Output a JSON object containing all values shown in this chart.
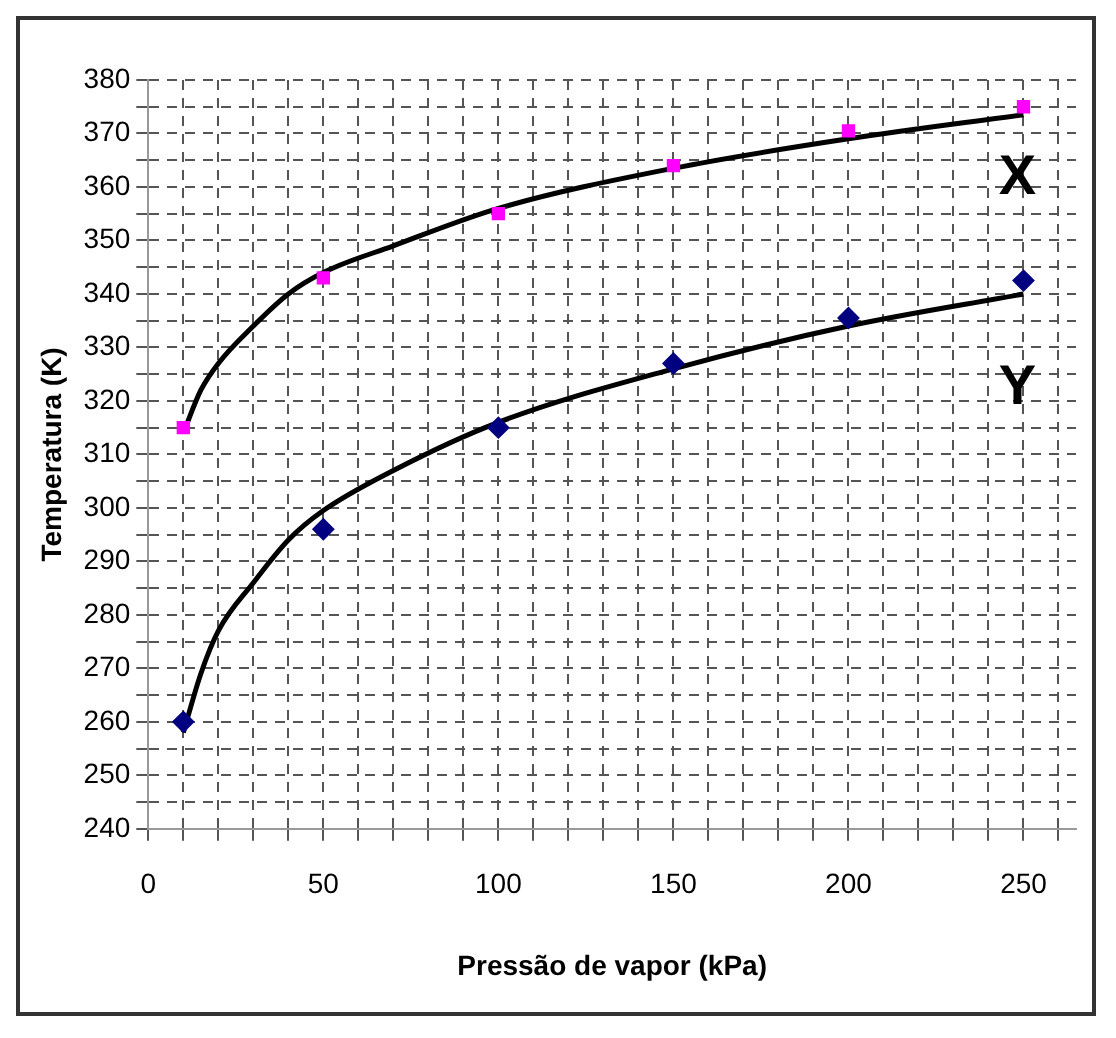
{
  "chart_data": {
    "type": "scatter",
    "xlabel": "Pressão de vapor (kPa)",
    "ylabel": "Temperatura (K)",
    "xlim": [
      0,
      265
    ],
    "ylim": [
      240,
      380
    ],
    "xticks": [
      0,
      {
        "value": 10,
        "label": null
      },
      {
        "value": 20,
        "label": null
      },
      {
        "value": 30,
        "label": null
      },
      {
        "value": 40,
        "label": null
      },
      50,
      {
        "value": 60,
        "label": null
      },
      {
        "value": 70,
        "label": null
      },
      {
        "value": 80,
        "label": null
      },
      {
        "value": 90,
        "label": null
      },
      100,
      {
        "value": 110,
        "label": null
      },
      {
        "value": 120,
        "label": null
      },
      {
        "value": 130,
        "label": null
      },
      {
        "value": 140,
        "label": null
      },
      150,
      {
        "value": 160,
        "label": null
      },
      {
        "value": 170,
        "label": null
      },
      {
        "value": 180,
        "label": null
      },
      {
        "value": 190,
        "label": null
      },
      200,
      {
        "value": 210,
        "label": null
      },
      {
        "value": 220,
        "label": null
      },
      {
        "value": 230,
        "label": null
      },
      {
        "value": 240,
        "label": null
      },
      250,
      {
        "value": 260,
        "label": null
      }
    ],
    "yticks": [
      240,
      {
        "value": 245,
        "label": null
      },
      250,
      {
        "value": 255,
        "label": null
      },
      260,
      {
        "value": 265,
        "label": null
      },
      270,
      {
        "value": 275,
        "label": null
      },
      280,
      {
        "value": 285,
        "label": null
      },
      290,
      {
        "value": 295,
        "label": null
      },
      300,
      {
        "value": 305,
        "label": null
      },
      310,
      {
        "value": 315,
        "label": null
      },
      320,
      {
        "value": 325,
        "label": null
      },
      330,
      {
        "value": 335,
        "label": null
      },
      340,
      {
        "value": 345,
        "label": null
      },
      350,
      {
        "value": 355,
        "label": null
      },
      360,
      {
        "value": 365,
        "label": null
      },
      370,
      {
        "value": 375,
        "label": null
      },
      380
    ],
    "grid": true,
    "legend": false,
    "line_style": "dashed",
    "series": [
      {
        "type": "line",
        "color": "#000000",
        "marker": "none",
        "line_style": "solid",
        "x": [
          10,
          15,
          20,
          30,
          40,
          50,
          70,
          100,
          150,
          200,
          250
        ],
        "values": [
          314,
          322,
          327,
          334,
          340,
          344,
          349,
          356,
          363.5,
          369,
          373.5
        ]
      },
      {
        "type": "line",
        "color": "#000000",
        "marker": "none",
        "line_style": "solid",
        "x": [
          10,
          15,
          20,
          30,
          40,
          50,
          70,
          100,
          150,
          200,
          250
        ],
        "values": [
          258,
          269,
          277,
          286,
          294,
          299.5,
          307,
          316,
          326,
          334,
          340
        ]
      },
      {
        "name": "X",
        "type": "scatter",
        "color": "#ff00ff",
        "marker": "square",
        "x": [
          10,
          50,
          100,
          150,
          200,
          250
        ],
        "values": [
          315,
          343,
          355,
          364,
          370.5,
          375
        ]
      },
      {
        "name": "Y",
        "type": "scatter",
        "color": "#000080",
        "marker": "diamond",
        "x": [
          10,
          50,
          100,
          150,
          200,
          250
        ],
        "values": [
          260,
          296,
          315,
          327,
          335.5,
          342.5
        ]
      }
    ]
  }
}
